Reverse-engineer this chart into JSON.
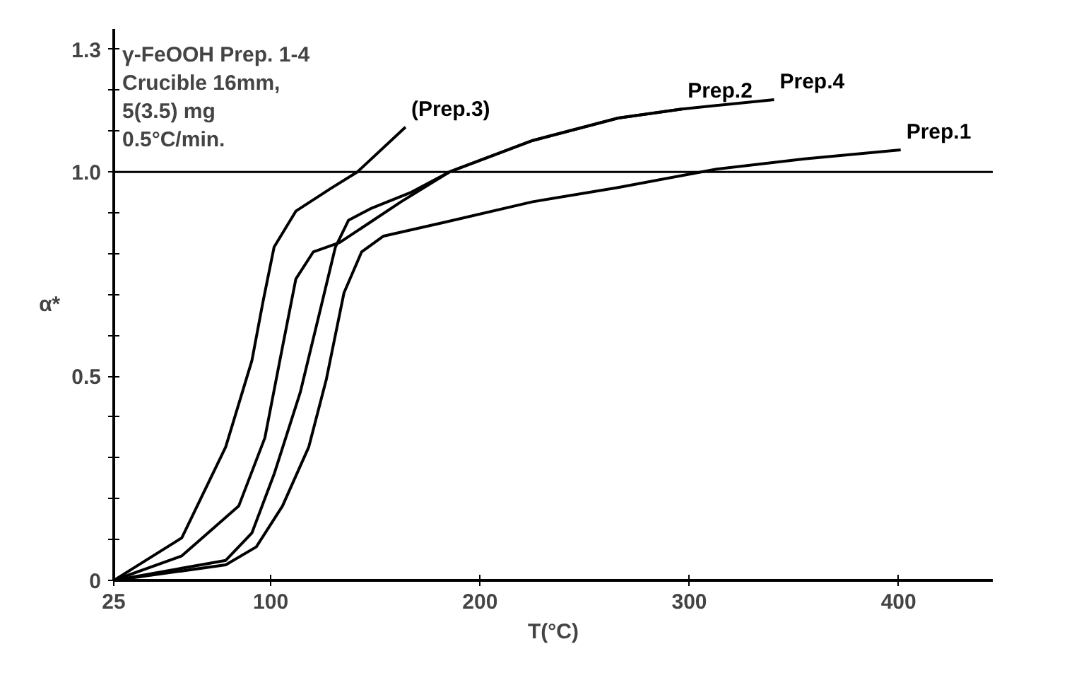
{
  "chart_data": {
    "type": "line",
    "title": "γ-FeOOH Prep. 1-4\nCrucible   16mm,\n5(3.5)  mg\n0.5°C/min.",
    "xlabel": "T(°C)",
    "ylabel": "α*",
    "xlim": [
      25,
      445
    ],
    "ylim": [
      0,
      1.35
    ],
    "xticks": [
      25,
      100,
      200,
      300,
      400
    ],
    "yticks": [
      0,
      {
        "value": 0.1,
        "label": null
      },
      {
        "value": 0.2,
        "label": null
      },
      {
        "value": 0.3,
        "label": null
      },
      {
        "value": 0.4,
        "label": null
      },
      {
        "value": 0.5,
        "label": "0.5"
      },
      {
        "value": 0.6,
        "label": null
      },
      {
        "value": 0.7,
        "label": null
      },
      {
        "value": 0.8,
        "label": null
      },
      {
        "value": 0.9,
        "label": null
      },
      {
        "value": 1.0,
        "label": "1.0"
      },
      {
        "value": 1.1,
        "label": null
      },
      {
        "value": 1.2,
        "label": null
      },
      1.3
    ],
    "grid": false,
    "marker": "none",
    "line_style": "solid",
    "ref_lines": [
      {
        "axis": "y",
        "value": 1.0,
        "label": null,
        "color": "#000000"
      }
    ],
    "series": [
      {
        "name": "(Prep.3)",
        "color": "#000000",
        "x": [
          25,
          57.5,
          78.5,
          91,
          96.3,
          101.6,
          112,
          128.8,
          141.4,
          164.4
        ],
        "values": [
          0,
          0.104,
          0.327,
          0.538,
          0.682,
          0.816,
          0.904,
          0.96,
          1.0,
          1.11
        ]
      },
      {
        "name": "Prep.2",
        "color": "#000000",
        "x": [
          25,
          57.5,
          84.7,
          97.2,
          105.6,
          112,
          120.3,
          132.9,
          162.3,
          185.4,
          225.2,
          266,
          296.5
        ],
        "values": [
          0,
          0.06,
          0.182,
          0.349,
          0.571,
          0.738,
          0.804,
          0.827,
          0.927,
          1.0,
          1.077,
          1.132,
          1.154
        ]
      },
      {
        "name": "Prep.4",
        "color": "#000000",
        "x": [
          25,
          78.5,
          91,
          101.6,
          114.1,
          124.6,
          130.9,
          137.2,
          147.7,
          166.6,
          185.4,
          225.2,
          266,
          296.5,
          340.5
        ],
        "values": [
          0,
          0.049,
          0.116,
          0.26,
          0.46,
          0.682,
          0.816,
          0.882,
          0.91,
          0.949,
          1.0,
          1.077,
          1.132,
          1.154,
          1.177
        ]
      },
      {
        "name": "Prep.1",
        "color": "#000000",
        "x": [
          25,
          78.5,
          93.1,
          105.6,
          118.2,
          126.6,
          135,
          143.4,
          153.9,
          183.3,
          225.2,
          266,
          313,
          355,
          401
        ],
        "values": [
          0,
          0.038,
          0.082,
          0.182,
          0.327,
          0.493,
          0.704,
          0.804,
          0.843,
          0.877,
          0.927,
          0.962,
          1.007,
          1.032,
          1.054
        ]
      }
    ]
  }
}
